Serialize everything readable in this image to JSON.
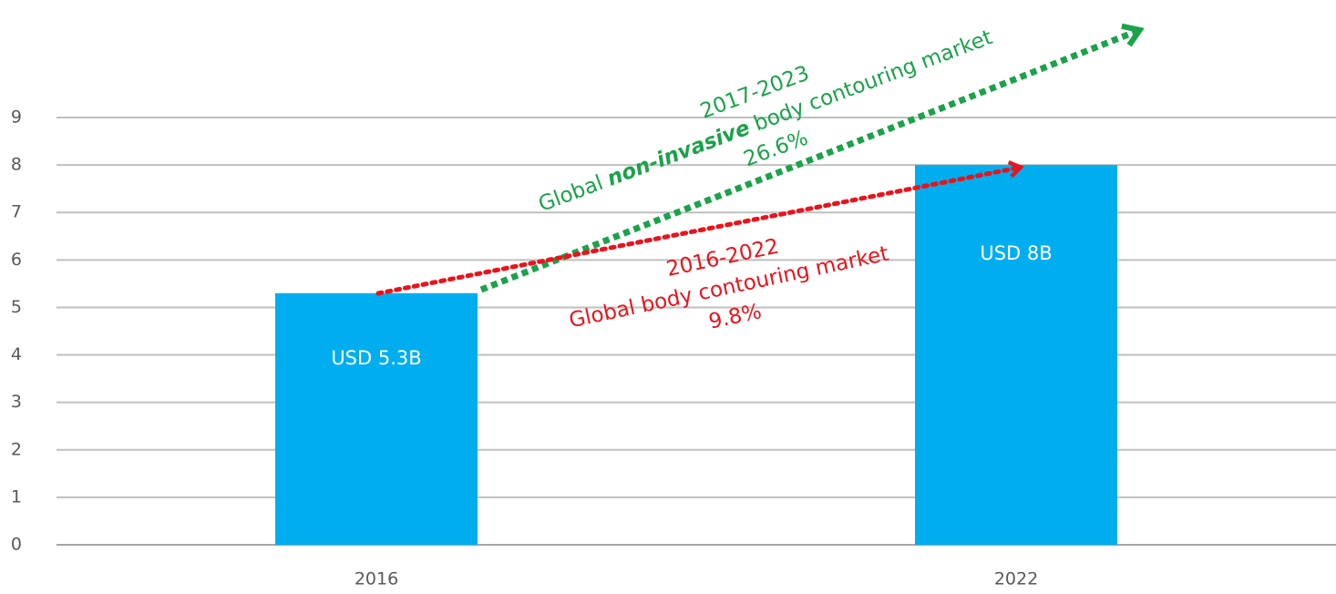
{
  "chart_data": {
    "type": "bar",
    "categories": [
      "2016",
      "2022"
    ],
    "values": [
      5.3,
      8
    ],
    "value_labels": [
      "USD 5.3B",
      "USD 8B"
    ],
    "color": "#00aeef",
    "ylim": [
      0,
      9
    ],
    "yticks": [
      0,
      1,
      2,
      3,
      4,
      5,
      6,
      7,
      8,
      9
    ],
    "grid": true,
    "annotations": [
      {
        "color": "#1ba24a",
        "lines": [
          "2017-2023",
          [
            "Global",
            "non-invasive",
            "body contouring market"
          ],
          "26.6%"
        ]
      },
      {
        "color": "#e8141c",
        "lines": [
          "2016-2022",
          "Global body contouring market",
          "9.8%"
        ]
      }
    ]
  }
}
